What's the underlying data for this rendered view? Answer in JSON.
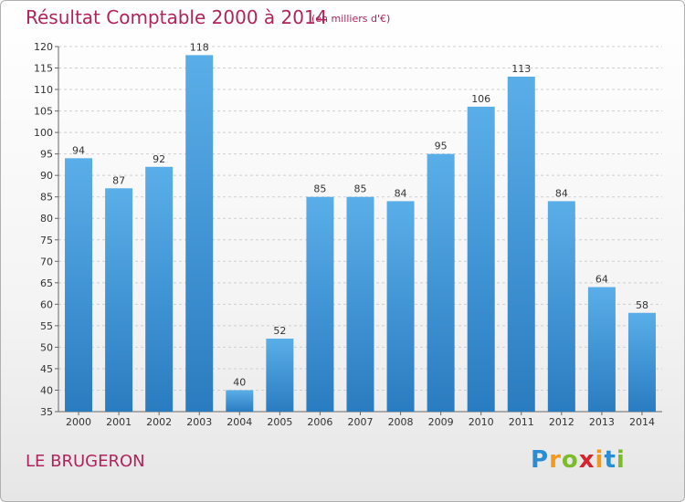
{
  "header": {
    "title": "Résultat Comptable 2000 à 2014",
    "unit": "(en milliers d'€)"
  },
  "footer": {
    "town": "LE BRUGERON",
    "logo": [
      "P",
      "r",
      "o",
      "x",
      "i",
      "t",
      "i"
    ],
    "logo_colors": [
      "#2a8dd4",
      "#f39a1c",
      "#7cbb2a",
      "#d8232a",
      "#f39a1c",
      "#2a8dd4",
      "#7cbb2a"
    ]
  },
  "chart_data": {
    "type": "bar",
    "title": "Résultat Comptable 2000 à 2014",
    "xlabel": "",
    "ylabel": "",
    "categories": [
      "2000",
      "2001",
      "2002",
      "2003",
      "2004",
      "2005",
      "2006",
      "2007",
      "2008",
      "2009",
      "2010",
      "2011",
      "2012",
      "2013",
      "2014"
    ],
    "values": [
      94,
      87,
      92,
      118,
      40,
      52,
      85,
      85,
      84,
      95,
      106,
      113,
      84,
      64,
      58
    ],
    "ylim": [
      35,
      120
    ],
    "yticks": [
      35,
      40,
      45,
      50,
      55,
      60,
      65,
      70,
      75,
      80,
      85,
      90,
      95,
      100,
      105,
      110,
      115,
      120
    ],
    "grid": true,
    "bar_color": "#3d97d8"
  }
}
